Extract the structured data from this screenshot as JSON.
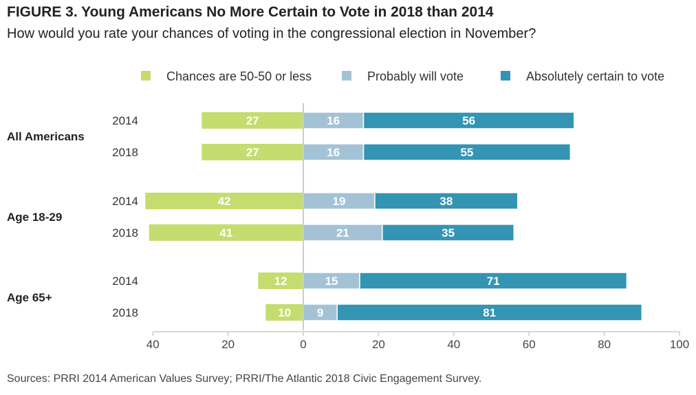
{
  "title": "FIGURE 3. Young Americans No More Certain to Vote in 2018 than 2014",
  "subtitle": "How would you rate your chances of voting in the congressional election in November?",
  "source": "Sources: PRRI 2014 American Values Survey; PRRI/The Atlantic 2018 Civic Engagement Survey.",
  "chart_data": {
    "type": "bar",
    "orientation": "horizontal-diverging",
    "title": "FIGURE 3. Young Americans No More Certain to Vote in 2018 than 2014",
    "subtitle": "How would you rate your chances of voting in the congressional election in November?",
    "legend_position": "top",
    "grid": false,
    "xlim": [
      -40,
      100
    ],
    "x_ticks": [
      -40,
      -20,
      0,
      20,
      40,
      60,
      80,
      100
    ],
    "x_tick_labels": [
      "40",
      "20",
      "0",
      "20",
      "40",
      "60",
      "80",
      "100"
    ],
    "series": [
      {
        "name": "Chances are 50-50 or less",
        "color": "#c5dc6e",
        "direction": "negative"
      },
      {
        "name": "Probably will vote",
        "color": "#a3c2d6",
        "direction": "positive"
      },
      {
        "name": "Absolutely certain to vote",
        "color": "#3494b3",
        "direction": "positive"
      }
    ],
    "groups": [
      {
        "label": "All Americans",
        "rows": [
          {
            "year": "2014",
            "values": [
              27,
              16,
              56
            ]
          },
          {
            "year": "2018",
            "values": [
              27,
              16,
              55
            ]
          }
        ]
      },
      {
        "label": "Age 18-29",
        "rows": [
          {
            "year": "2014",
            "values": [
              42,
              19,
              38
            ]
          },
          {
            "year": "2018",
            "values": [
              41,
              21,
              35
            ]
          }
        ]
      },
      {
        "label": "Age 65+",
        "rows": [
          {
            "year": "2014",
            "values": [
              12,
              15,
              71
            ]
          },
          {
            "year": "2018",
            "values": [
              10,
              9,
              81
            ]
          }
        ]
      }
    ]
  }
}
